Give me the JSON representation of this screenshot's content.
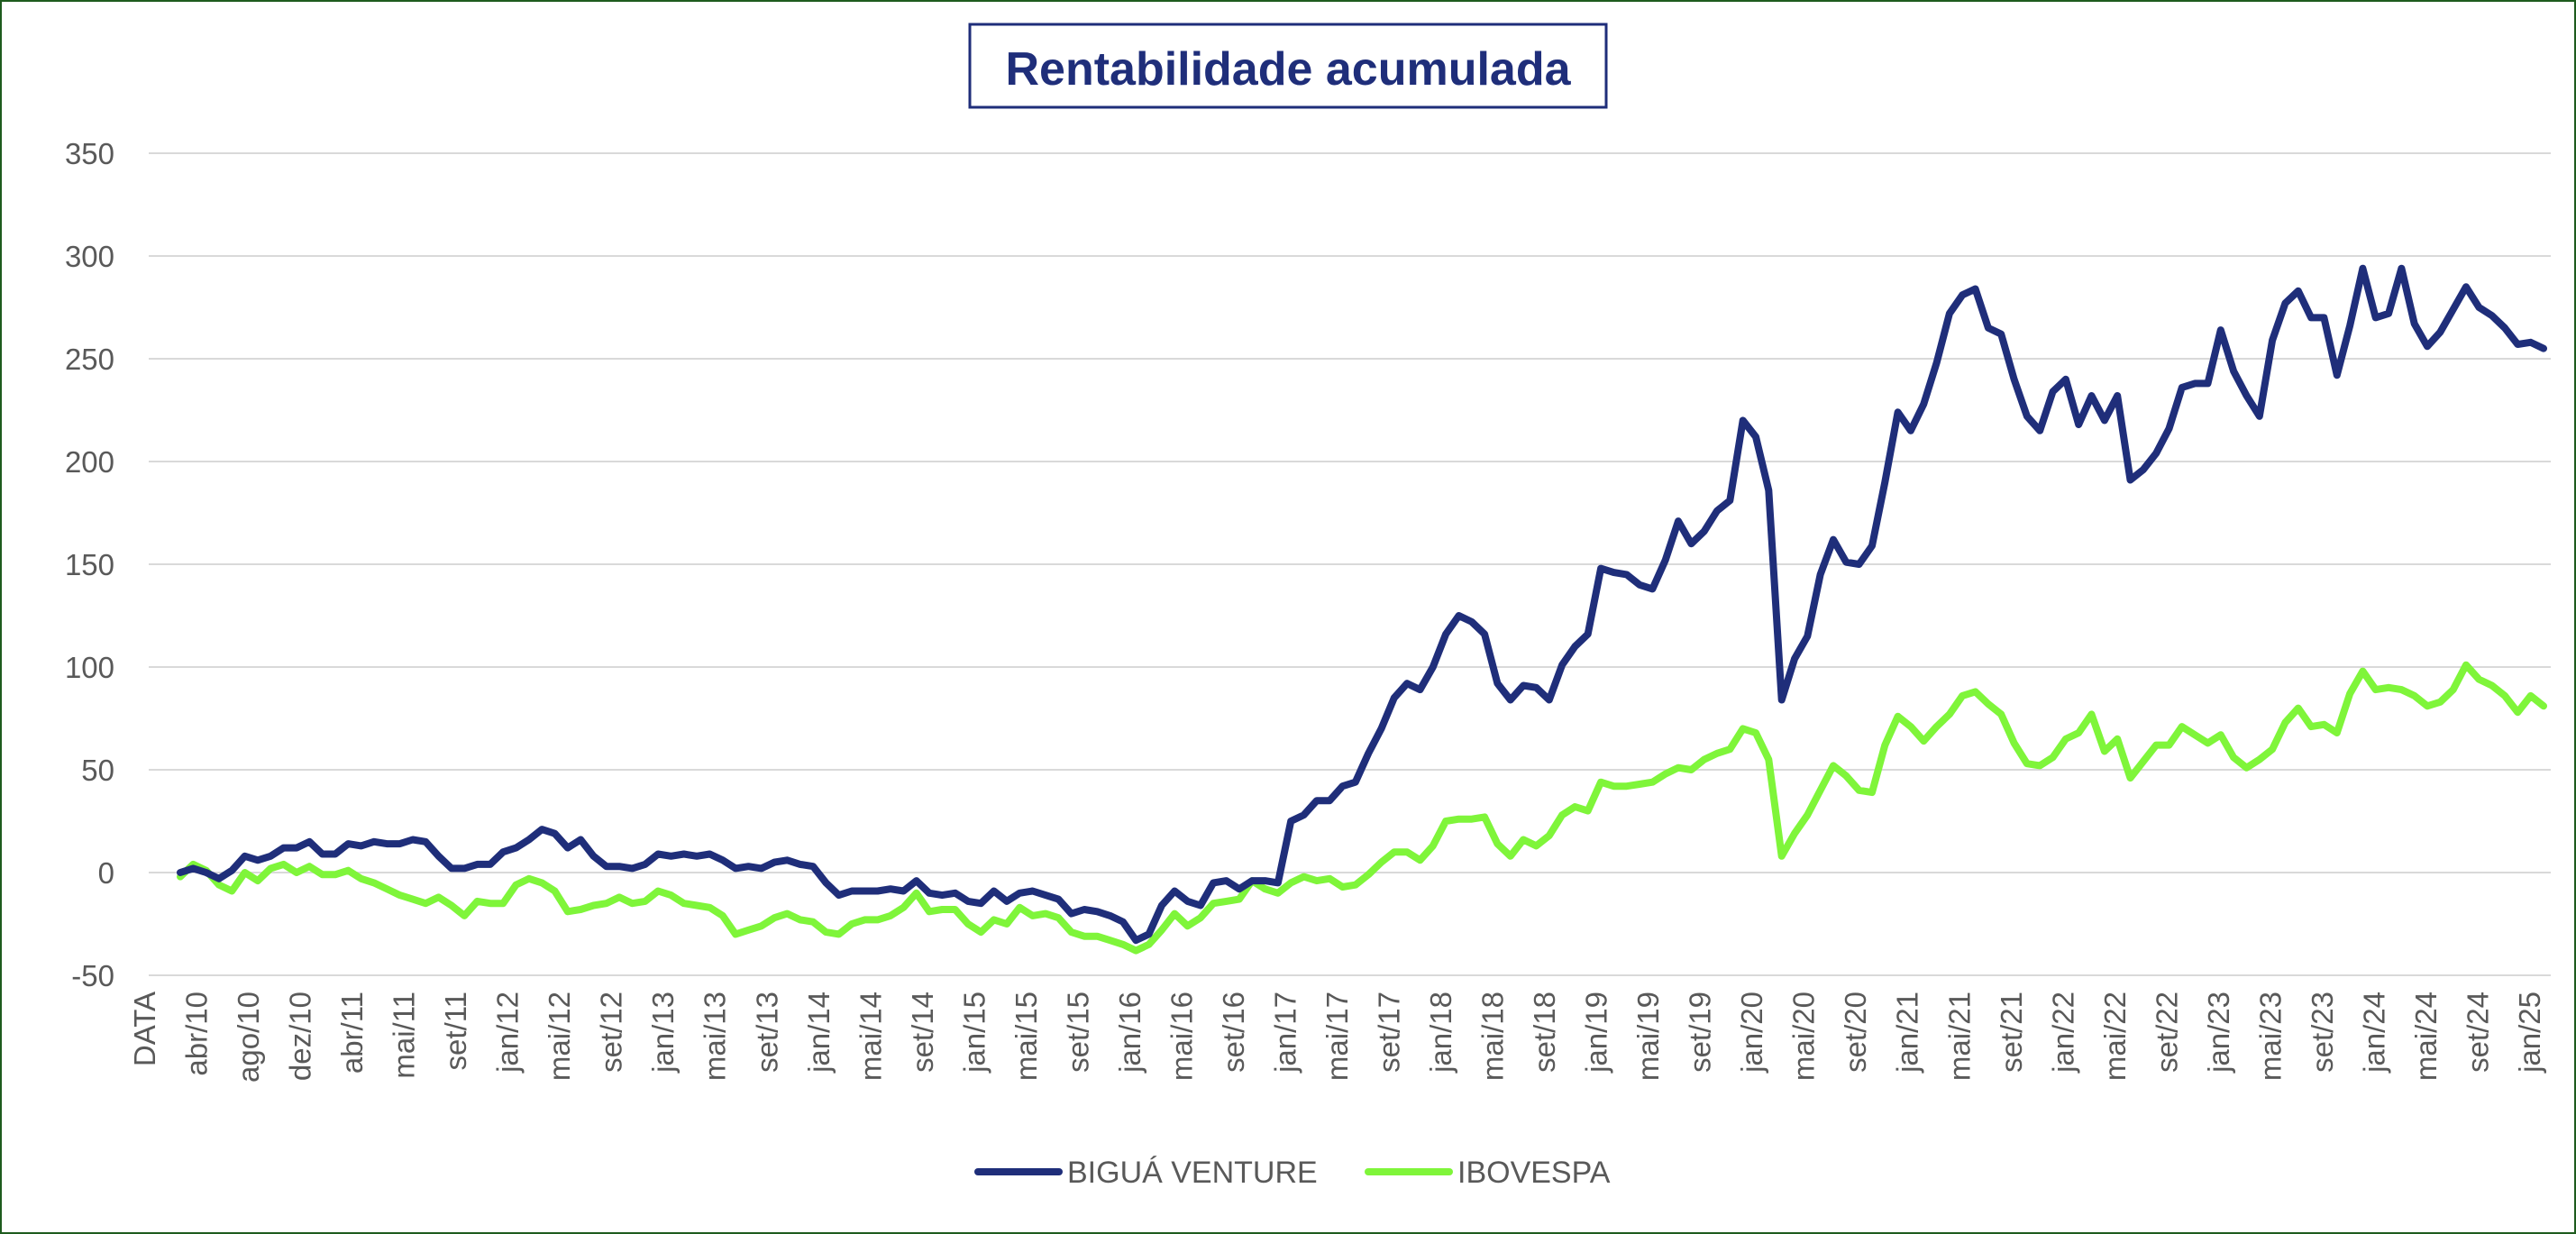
{
  "chart_data": {
    "type": "line",
    "title": "Rentabilidade acumulada",
    "xlabel": "",
    "ylabel": "",
    "ylim": [
      -50,
      350
    ],
    "yticks": [
      -50,
      0,
      50,
      100,
      150,
      200,
      250,
      300,
      350
    ],
    "grid": "horizontal",
    "legend": "bottom-center",
    "x_first_label": "DATA",
    "x_tick_labels": [
      "abr/10",
      "ago/10",
      "dez/10",
      "abr/11",
      "mai/11",
      "set/11",
      "jan/12",
      "mai/12",
      "set/12",
      "jan/13",
      "mai/13",
      "set/13",
      "jan/14",
      "mai/14",
      "set/14",
      "jan/15",
      "mai/15",
      "set/15",
      "jan/16",
      "mai/16",
      "set/16",
      "jan/17",
      "mai/17",
      "set/17",
      "jan/18",
      "mai/18",
      "set/18",
      "jan/19",
      "mai/19",
      "set/19",
      "jan/20",
      "mai/20",
      "set/20",
      "jan/21",
      "mai/21",
      "set/21",
      "jan/22",
      "mai/22",
      "set/22",
      "jan/23",
      "mai/23",
      "set/23",
      "jan/24",
      "mai/24",
      "set/24",
      "jan/25"
    ],
    "series": [
      {
        "name": "BIGUÁ VENTURE",
        "color": "#1f2e7a",
        "values": [
          0,
          2,
          0,
          -3,
          1,
          8,
          6,
          8,
          12,
          12,
          15,
          9,
          9,
          14,
          13,
          15,
          14,
          14,
          16,
          15,
          8,
          2,
          2,
          4,
          4,
          10,
          12,
          16,
          21,
          19,
          12,
          16,
          8,
          3,
          3,
          2,
          4,
          9,
          8,
          9,
          8,
          9,
          6,
          2,
          3,
          2,
          5,
          6,
          4,
          3,
          -5,
          -11,
          -9,
          -9,
          -9,
          -8,
          -9,
          -4,
          -10,
          -11,
          -10,
          -14,
          -15,
          -9,
          -14,
          -10,
          -9,
          -11,
          -13,
          -20,
          -18,
          -19,
          -21,
          -24,
          -33,
          -30,
          -16,
          -9,
          -14,
          -16,
          -5,
          -4,
          -8,
          -4,
          -4,
          -5,
          25,
          28,
          35,
          35,
          42,
          44,
          58,
          70,
          85,
          92,
          89,
          100,
          116,
          125,
          122,
          116,
          92,
          84,
          91,
          90,
          84,
          101,
          110,
          116,
          148,
          146,
          145,
          140,
          138,
          152,
          171,
          160,
          166,
          176,
          181,
          220,
          212,
          186,
          84,
          104,
          115,
          145,
          162,
          151,
          150,
          159,
          190,
          224,
          215,
          228,
          248,
          272,
          281,
          284,
          265,
          262,
          240,
          222,
          215,
          234,
          240,
          218,
          232,
          220,
          232,
          191,
          196,
          204,
          216,
          236,
          238,
          238,
          264,
          244,
          232,
          222,
          259,
          277,
          283,
          270,
          270,
          242,
          266,
          294,
          270,
          272,
          294,
          267,
          256,
          263,
          274,
          285,
          275,
          271,
          265,
          257,
          258,
          255
        ]
      },
      {
        "name": "IBOVESPA",
        "color": "#7ff53a",
        "values": [
          -2,
          4,
          1,
          -6,
          -9,
          0,
          -4,
          2,
          4,
          0,
          3,
          -1,
          -1,
          1,
          -3,
          -5,
          -8,
          -11,
          -13,
          -15,
          -12,
          -16,
          -21,
          -14,
          -15,
          -15,
          -6,
          -3,
          -5,
          -9,
          -19,
          -18,
          -16,
          -15,
          -12,
          -15,
          -14,
          -9,
          -11,
          -15,
          -16,
          -17,
          -21,
          -30,
          -28,
          -26,
          -22,
          -20,
          -23,
          -24,
          -29,
          -30,
          -25,
          -23,
          -23,
          -21,
          -17,
          -10,
          -19,
          -18,
          -18,
          -25,
          -29,
          -23,
          -25,
          -17,
          -21,
          -20,
          -22,
          -29,
          -31,
          -31,
          -33,
          -35,
          -38,
          -35,
          -28,
          -20,
          -26,
          -22,
          -15,
          -14,
          -13,
          -4,
          -8,
          -10,
          -5,
          -2,
          -4,
          -3,
          -7,
          -6,
          -1,
          5,
          10,
          10,
          6,
          13,
          25,
          26,
          26,
          27,
          14,
          8,
          16,
          13,
          18,
          28,
          32,
          30,
          44,
          42,
          42,
          43,
          44,
          48,
          51,
          50,
          55,
          58,
          60,
          70,
          68,
          55,
          8,
          19,
          28,
          40,
          52,
          47,
          40,
          39,
          62,
          76,
          71,
          64,
          71,
          77,
          86,
          88,
          82,
          77,
          63,
          53,
          52,
          56,
          65,
          68,
          77,
          59,
          65,
          46,
          54,
          62,
          62,
          71,
          67,
          63,
          67,
          56,
          51,
          55,
          60,
          73,
          80,
          71,
          72,
          68,
          87,
          98,
          89,
          90,
          89,
          86,
          81,
          83,
          89,
          101,
          94,
          91,
          86,
          78,
          86,
          81
        ]
      }
    ]
  }
}
